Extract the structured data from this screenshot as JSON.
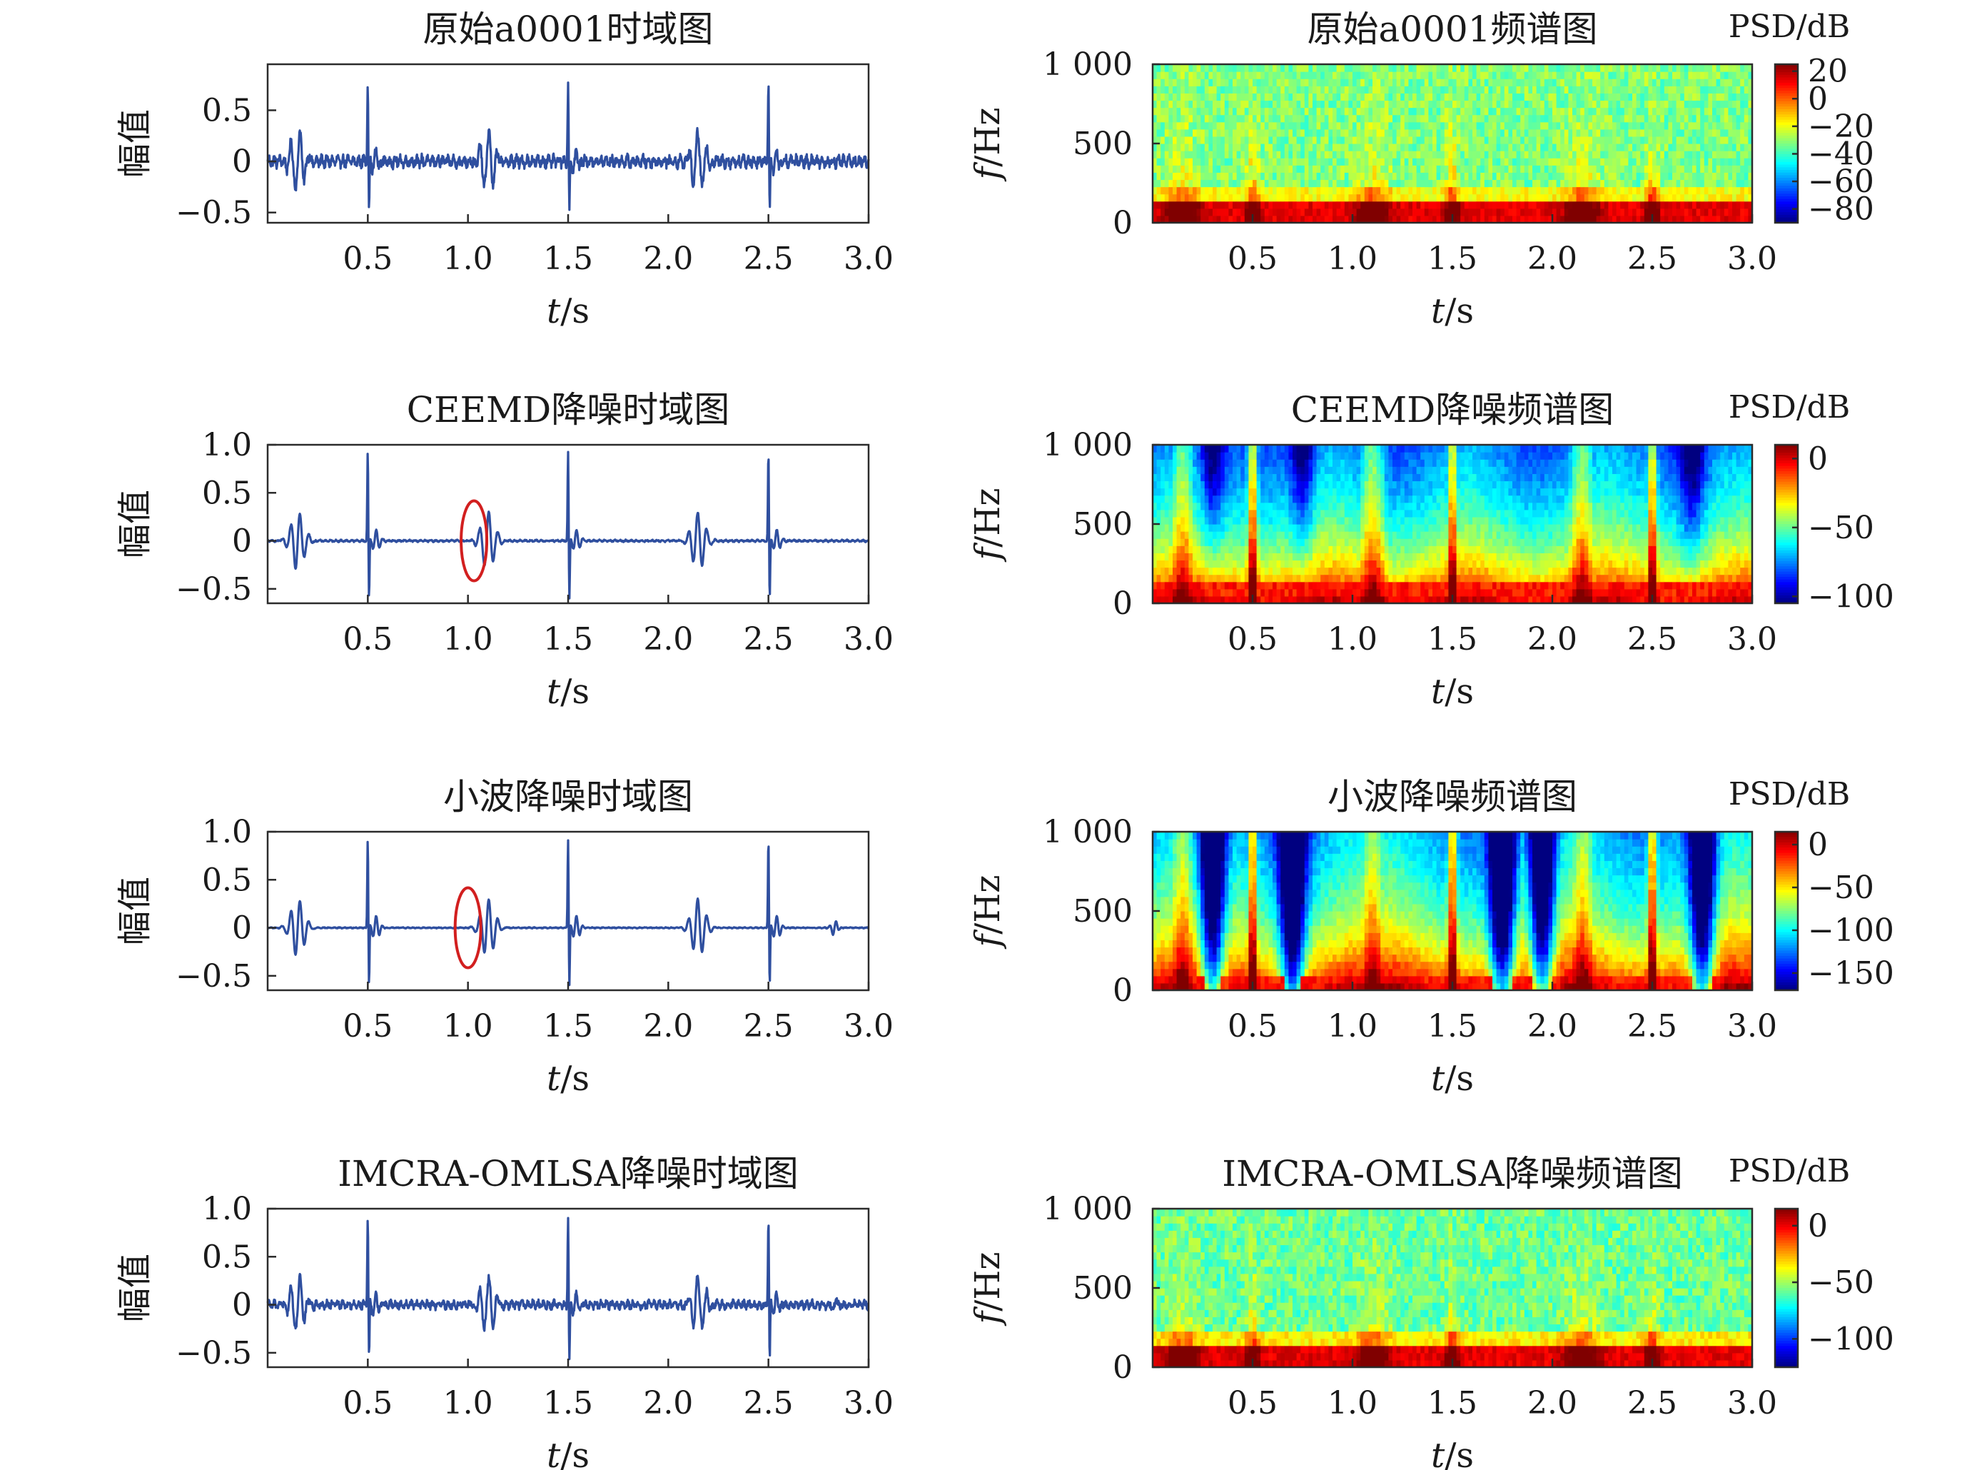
{
  "figure": {
    "colors": {
      "waveform": "#2f4f9f",
      "annotation_ellipse": "#d21f1f",
      "colormap": "jet",
      "axes": "#2b2b2b"
    }
  },
  "chart_data": [
    {
      "id": "td0",
      "type": "line",
      "title": "原始a0001时域图",
      "xlabel_var": "t",
      "xlabel_unit": "/s",
      "ylabel": "幅值",
      "xlim": [
        0,
        3.0
      ],
      "ylim": [
        -0.6,
        0.95
      ],
      "xticks": [
        "0.5",
        "1.0",
        "1.5",
        "2.0",
        "2.5",
        "3.0"
      ],
      "yticks": [
        "0.5",
        "0",
        "−0.5"
      ],
      "ytick_values": [
        0.5,
        0,
        -0.5
      ],
      "spikes_s": [
        0.5,
        1.5,
        2.5
      ],
      "bursts_s": [
        0.15,
        1.1,
        2.15
      ],
      "peak": 0.8,
      "trough": -0.5,
      "noise_level": 0.06
    },
    {
      "id": "sp0",
      "type": "heatmap",
      "title": "原始a0001频谱图",
      "xlabel_var": "t",
      "xlabel_unit": "/s",
      "ylabel_var": "f",
      "ylabel_unit": "/Hz",
      "xlim": [
        0,
        3.0
      ],
      "ylim": [
        0,
        1000
      ],
      "xticks": [
        "0.5",
        "1.0",
        "1.5",
        "2.0",
        "2.5",
        "3.0"
      ],
      "yticks": [
        "1 000",
        "500",
        "0"
      ],
      "ytick_values": [
        1000,
        500,
        0
      ],
      "colorbar": {
        "label": "PSD/dB",
        "range": [
          -90,
          25
        ],
        "ticks": [
          "20",
          "0",
          "−20",
          "−40",
          "−60",
          "−80"
        ],
        "tick_values": [
          20,
          0,
          -20,
          -40,
          -60,
          -80
        ]
      }
    },
    {
      "id": "td1",
      "type": "line",
      "title": "CEEMD降噪时域图",
      "xlabel_var": "t",
      "xlabel_unit": "/s",
      "ylabel": "幅值",
      "xlim": [
        0,
        3.0
      ],
      "ylim": [
        -0.65,
        1.0
      ],
      "xticks": [
        "0.5",
        "1.0",
        "1.5",
        "2.0",
        "2.5",
        "3.0"
      ],
      "yticks": [
        "1.0",
        "0.5",
        "0",
        "−0.5"
      ],
      "ytick_values": [
        1.0,
        0.5,
        0,
        -0.5
      ],
      "spikes_s": [
        0.5,
        1.5,
        2.5
      ],
      "bursts_s": [
        0.15,
        1.1,
        2.15
      ],
      "peak": 0.95,
      "trough": -0.62,
      "noise_level": 0.01,
      "annotation": {
        "shape": "ellipse",
        "t": 1.03,
        "value": 0.0
      }
    },
    {
      "id": "sp1",
      "type": "heatmap",
      "title": "CEEMD降噪频谱图",
      "xlabel_var": "t",
      "xlabel_unit": "/s",
      "ylabel_var": "f",
      "ylabel_unit": "/Hz",
      "xlim": [
        0,
        3.0
      ],
      "ylim": [
        0,
        1000
      ],
      "xticks": [
        "0.5",
        "1.0",
        "1.5",
        "2.0",
        "2.5",
        "3.0"
      ],
      "yticks": [
        "1 000",
        "500",
        "0"
      ],
      "ytick_values": [
        1000,
        500,
        0
      ],
      "colorbar": {
        "label": "PSD/dB",
        "range": [
          -105,
          10
        ],
        "ticks": [
          "0",
          "−50",
          "−100"
        ],
        "tick_values": [
          0,
          -50,
          -100
        ]
      }
    },
    {
      "id": "td2",
      "type": "line",
      "title": "小波降噪时域图",
      "xlabel_var": "t",
      "xlabel_unit": "/s",
      "ylabel": "幅值",
      "xlim": [
        0,
        3.0
      ],
      "ylim": [
        -0.65,
        1.0
      ],
      "xticks": [
        "0.5",
        "1.0",
        "1.5",
        "2.0",
        "2.5",
        "3.0"
      ],
      "yticks": [
        "1.0",
        "0.5",
        "0",
        "−0.5"
      ],
      "ytick_values": [
        1.0,
        0.5,
        0,
        -0.5
      ],
      "spikes_s": [
        0.5,
        1.5,
        2.5
      ],
      "bursts_s": [
        0.15,
        1.1,
        2.15
      ],
      "peak": 0.95,
      "trough": -0.62,
      "noise_level": 0.005,
      "annotation": {
        "shape": "ellipse",
        "t": 1.0,
        "value": 0.0
      }
    },
    {
      "id": "sp2",
      "type": "heatmap",
      "title": "小波降噪频谱图",
      "xlabel_var": "t",
      "xlabel_unit": "/s",
      "ylabel_var": "f",
      "ylabel_unit": "/Hz",
      "xlim": [
        0,
        3.0
      ],
      "ylim": [
        0,
        1000
      ],
      "xticks": [
        "0.5",
        "1.0",
        "1.5",
        "2.0",
        "2.5",
        "3.0"
      ],
      "yticks": [
        "1 000",
        "500",
        "0"
      ],
      "ytick_values": [
        1000,
        500,
        0
      ],
      "colorbar": {
        "label": "PSD/dB",
        "range": [
          -170,
          15
        ],
        "ticks": [
          "0",
          "−50",
          "−100",
          "−150"
        ],
        "tick_values": [
          0,
          -50,
          -100,
          -150
        ]
      }
    },
    {
      "id": "td3",
      "type": "line",
      "title": "IMCRA-OMLSA降噪时域图",
      "xlabel_var": "t",
      "xlabel_unit": "/s",
      "ylabel": "幅值",
      "xlim": [
        0,
        3.0
      ],
      "ylim": [
        -0.65,
        1.0
      ],
      "xticks": [
        "0.5",
        "1.0",
        "1.5",
        "2.0",
        "2.5",
        "3.0"
      ],
      "yticks": [
        "1.0",
        "0.5",
        "0",
        "−0.5"
      ],
      "ytick_values": [
        1.0,
        0.5,
        0,
        -0.5
      ],
      "spikes_s": [
        0.5,
        1.5,
        2.5
      ],
      "bursts_s": [
        0.15,
        1.1,
        2.15
      ],
      "peak": 0.95,
      "trough": -0.6,
      "noise_level": 0.045
    },
    {
      "id": "sp3",
      "type": "heatmap",
      "title": "IMCRA-OMLSA降噪频谱图",
      "xlabel_var": "t",
      "xlabel_unit": "/s",
      "ylabel_var": "f",
      "ylabel_unit": "/Hz",
      "xlim": [
        0,
        3.0
      ],
      "ylim": [
        0,
        1000
      ],
      "xticks": [
        "0.5",
        "1.0",
        "1.5",
        "2.0",
        "2.5",
        "3.0"
      ],
      "yticks": [
        "1 000",
        "500",
        "0"
      ],
      "ytick_values": [
        1000,
        500,
        0
      ],
      "colorbar": {
        "label": "PSD/dB",
        "range": [
          -125,
          15
        ],
        "ticks": [
          "0",
          "−50",
          "−100"
        ],
        "tick_values": [
          0,
          -50,
          -100
        ]
      }
    }
  ]
}
